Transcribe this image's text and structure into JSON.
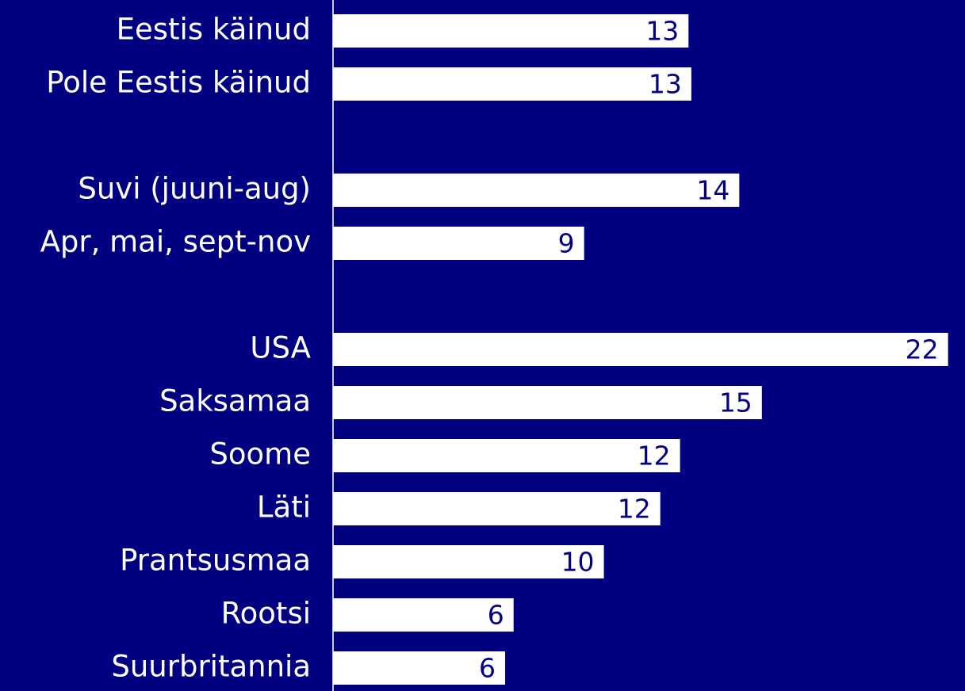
{
  "chart_data": {
    "type": "hbar",
    "categories": [
      "Eestis käinud",
      "Pole Eestis käinud",
      null,
      "Suvi (juuni-aug)",
      "Apr, mai, sept-nov",
      null,
      "USA",
      "Saksamaa",
      "Soome",
      "Läti",
      "Prantsusmaa",
      "Rootsi",
      "Suurbritannia"
    ],
    "values": [
      12.6,
      12.7,
      null,
      14.4,
      8.9,
      null,
      21.8,
      15.2,
      12.3,
      11.6,
      9.6,
      6.4,
      6.1
    ],
    "value_labels": [
      "13",
      "13",
      null,
      "14",
      "9",
      null,
      "22",
      "15",
      "12",
      "12",
      "10",
      "6",
      "6"
    ],
    "color": "#ffffff",
    "background": "#000080",
    "xlim": [
      0,
      22.4
    ]
  }
}
